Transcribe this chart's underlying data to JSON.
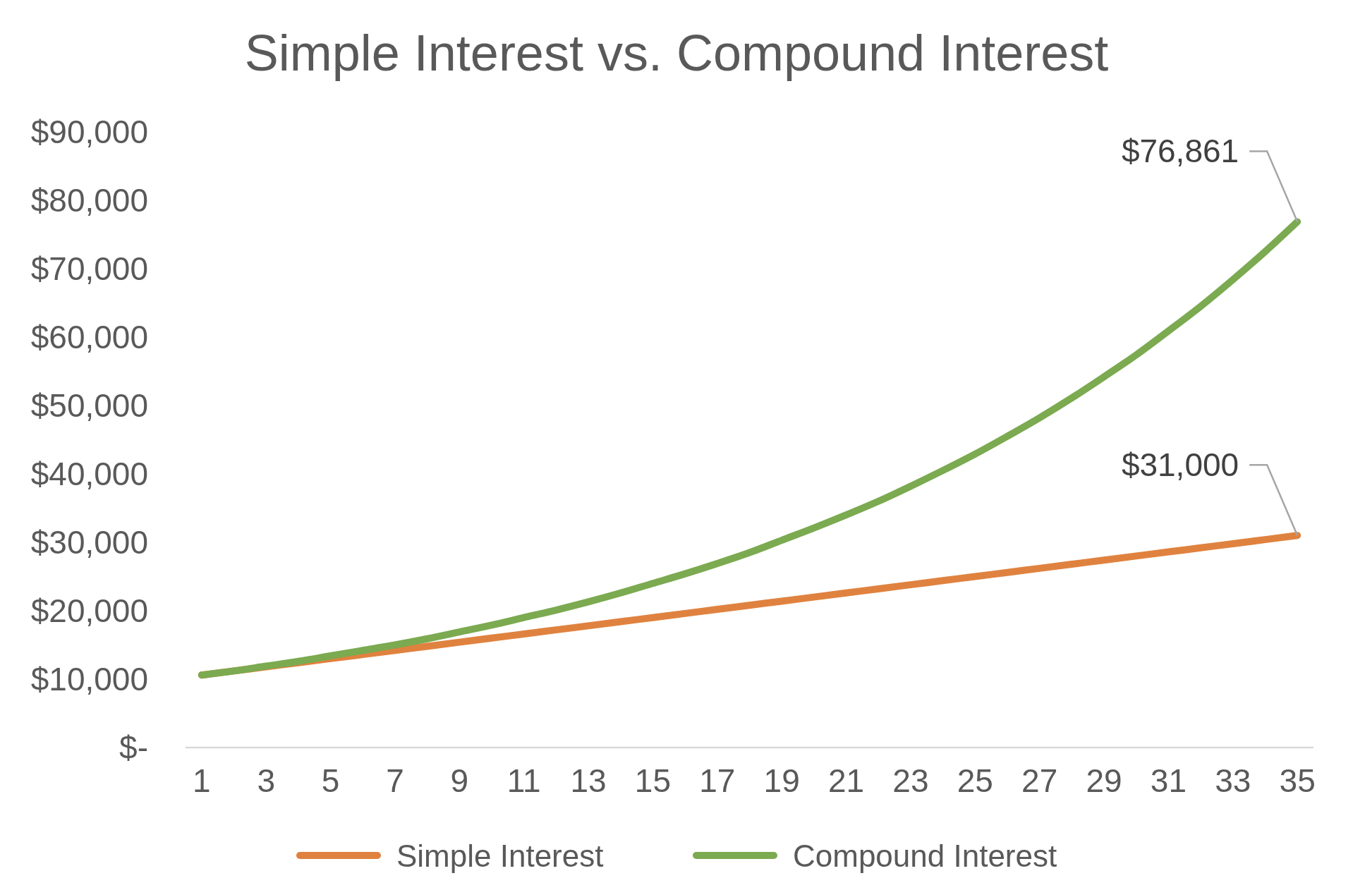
{
  "chart_data": {
    "type": "line",
    "title": "Simple Interest vs. Compound Interest",
    "x": [
      1,
      2,
      3,
      4,
      5,
      6,
      7,
      8,
      9,
      10,
      11,
      12,
      13,
      14,
      15,
      16,
      17,
      18,
      19,
      20,
      21,
      22,
      23,
      24,
      25,
      26,
      27,
      28,
      29,
      30,
      31,
      32,
      33,
      34,
      35
    ],
    "xlim": [
      0.5,
      35.5
    ],
    "xticks": [
      1,
      3,
      5,
      7,
      9,
      11,
      13,
      15,
      17,
      19,
      21,
      23,
      25,
      27,
      29,
      31,
      33,
      35
    ],
    "series": [
      {
        "name": "Simple Interest",
        "color": "#e0823f",
        "values": [
          10600,
          11200,
          11800,
          12400,
          13000,
          13600,
          14200,
          14800,
          15400,
          16000,
          16600,
          17200,
          17800,
          18400,
          19000,
          19600,
          20200,
          20800,
          21400,
          22000,
          22600,
          23200,
          23800,
          24400,
          25000,
          25600,
          26200,
          26800,
          27400,
          28000,
          28600,
          29200,
          29800,
          30400,
          31000
        ],
        "value_labels": [
          null,
          null,
          null,
          null,
          null,
          null,
          null,
          null,
          null,
          null,
          null,
          null,
          null,
          null,
          null,
          null,
          null,
          null,
          null,
          null,
          null,
          null,
          null,
          null,
          null,
          null,
          null,
          null,
          null,
          null,
          null,
          null,
          null,
          null,
          "$31,000"
        ]
      },
      {
        "name": "Compound Interest",
        "color": "#7baa50",
        "values": [
          10600,
          11200,
          11900,
          12600,
          13400,
          14200,
          15000,
          15900,
          16900,
          17900,
          19000,
          20100,
          21300,
          22600,
          24000,
          25400,
          26900,
          28500,
          30300,
          32100,
          34000,
          36000,
          38200,
          40500,
          42900,
          45500,
          48200,
          51100,
          54200,
          57400,
          60900,
          64500,
          68400,
          72500,
          76861
        ],
        "value_labels": [
          null,
          null,
          null,
          null,
          null,
          null,
          null,
          null,
          null,
          null,
          null,
          null,
          null,
          null,
          null,
          null,
          null,
          null,
          null,
          null,
          null,
          null,
          null,
          null,
          null,
          null,
          null,
          null,
          null,
          null,
          null,
          null,
          null,
          null,
          "$76,861"
        ]
      }
    ],
    "ylim": [
      0,
      90000
    ],
    "yticks": [
      {
        "value": 0,
        "label": "$-"
      },
      {
        "value": 10000,
        "label": "$10,000"
      },
      {
        "value": 20000,
        "label": "$20,000"
      },
      {
        "value": 30000,
        "label": "$30,000"
      },
      {
        "value": 40000,
        "label": "$40,000"
      },
      {
        "value": 50000,
        "label": "$50,000"
      },
      {
        "value": 60000,
        "label": "$60,000"
      },
      {
        "value": 70000,
        "label": "$70,000"
      },
      {
        "value": 80000,
        "label": "$80,000"
      },
      {
        "value": 90000,
        "label": "$90,000"
      }
    ],
    "grid": false,
    "legend": "bottom"
  }
}
